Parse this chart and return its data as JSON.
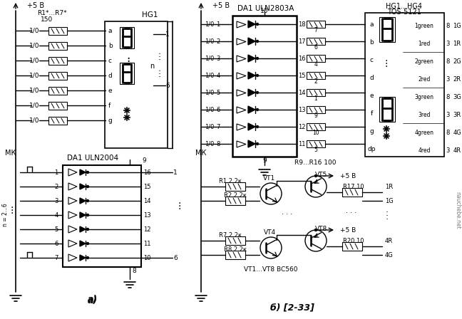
{
  "bg_color": "#ffffff",
  "line_color": "#000000",
  "title_a": "а)",
  "title_b": "б) [2-33]",
  "watermark": "nauchebe.net"
}
